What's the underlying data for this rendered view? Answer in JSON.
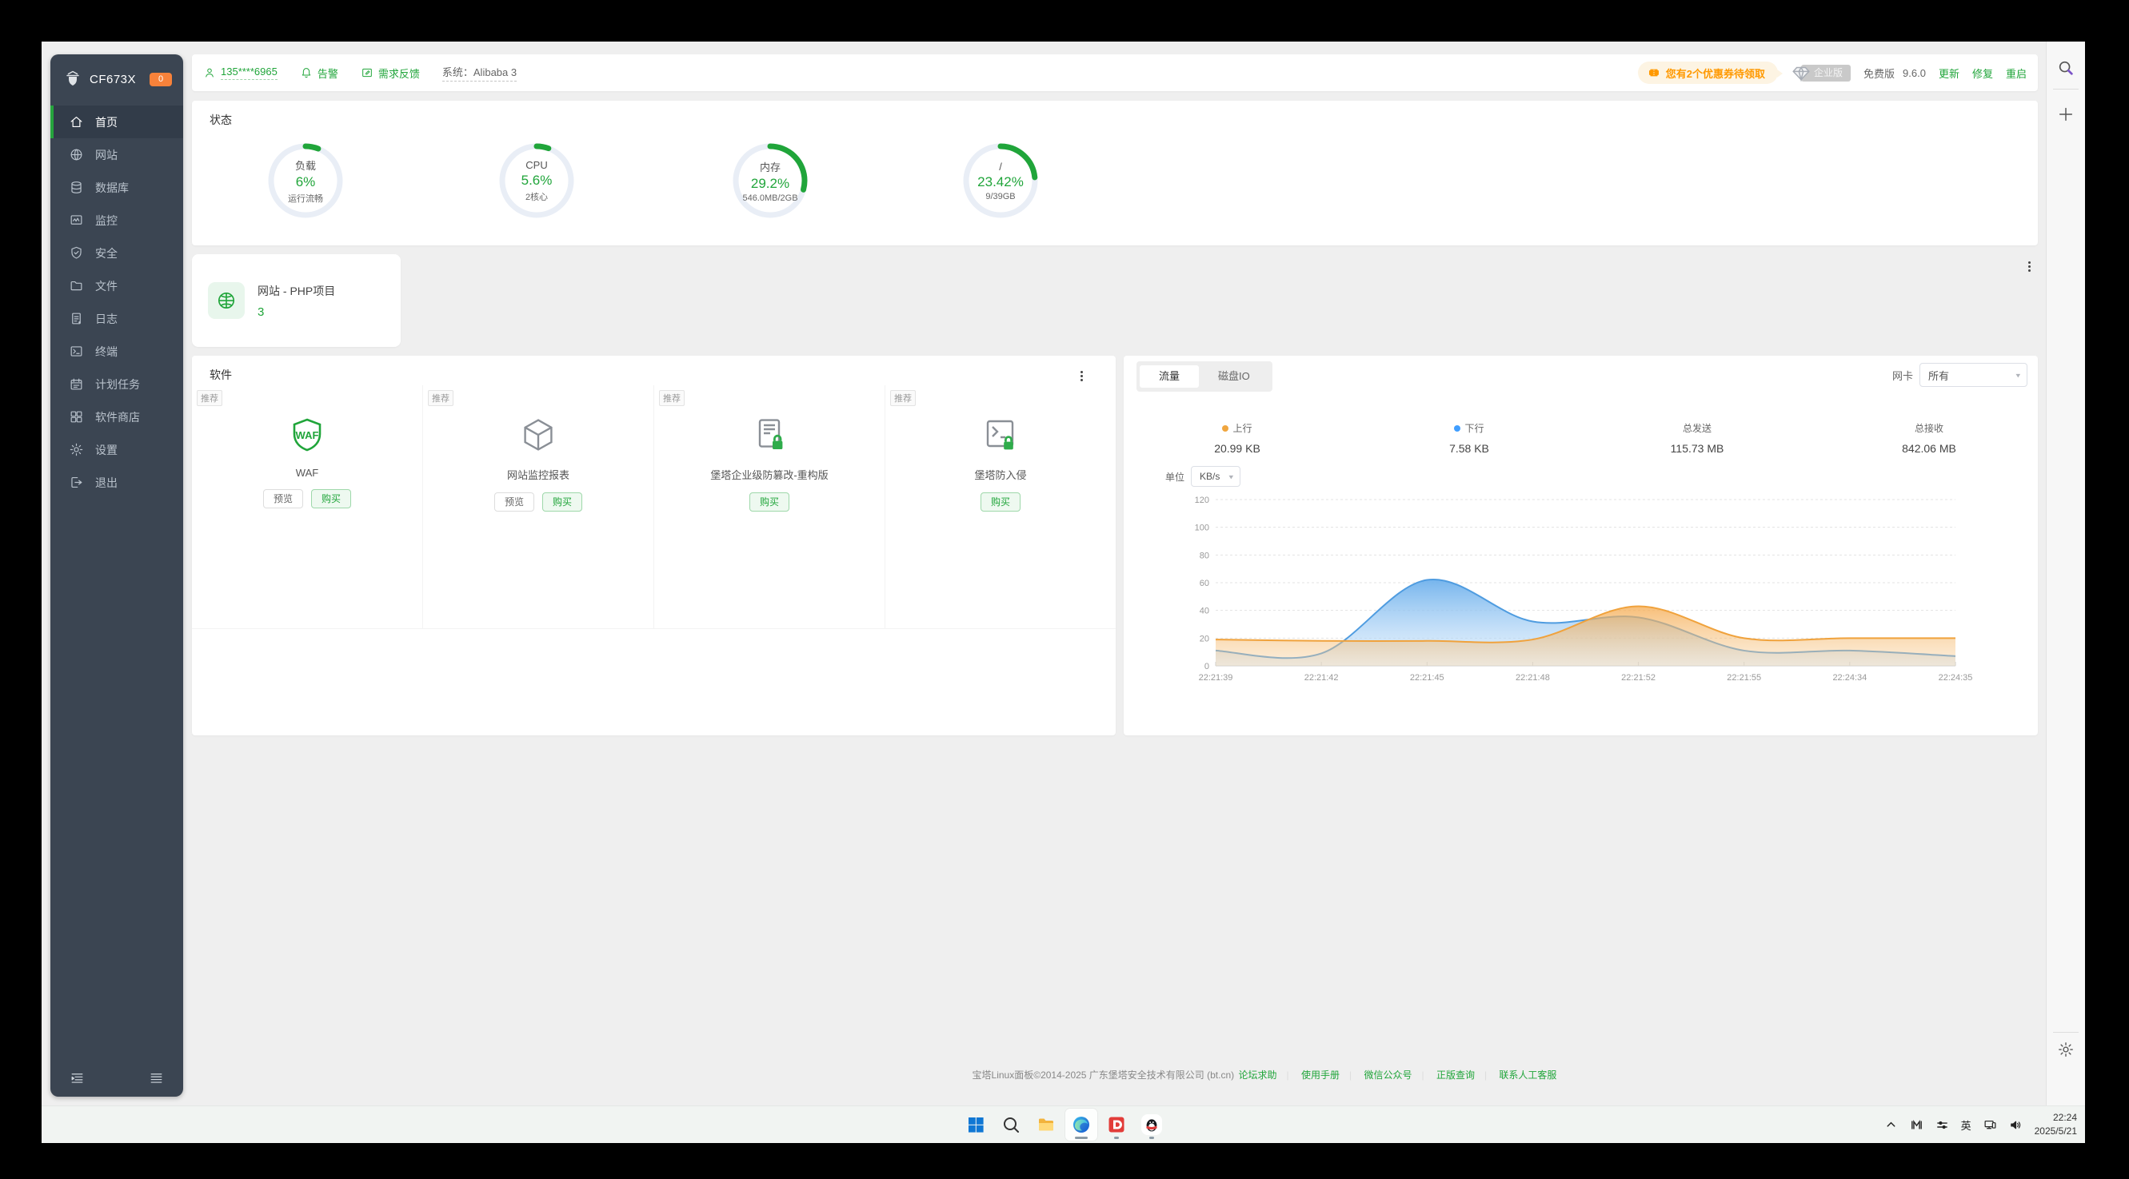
{
  "sidebar": {
    "logo_text": "CF673X",
    "logo_badge": "0",
    "items": [
      {
        "label": "首页",
        "icon": "home-icon",
        "active": true
      },
      {
        "label": "网站",
        "icon": "globe-icon"
      },
      {
        "label": "数据库",
        "icon": "database-icon"
      },
      {
        "label": "监控",
        "icon": "monitor-icon"
      },
      {
        "label": "安全",
        "icon": "shield-icon"
      },
      {
        "label": "文件",
        "icon": "folder-icon"
      },
      {
        "label": "日志",
        "icon": "log-icon"
      },
      {
        "label": "终端",
        "icon": "terminal-icon"
      },
      {
        "label": "计划任务",
        "icon": "calendar-icon"
      },
      {
        "label": "软件商店",
        "icon": "store-icon"
      },
      {
        "label": "设置",
        "icon": "gear-icon"
      },
      {
        "label": "退出",
        "icon": "logout-icon"
      }
    ]
  },
  "topbar": {
    "account": "135****6965",
    "alarm": "告警",
    "feedback": "需求反馈",
    "system": "系统：Alibaba 3",
    "coupon": "您有2个优惠券待领取",
    "enterprise_badge": "企业版",
    "edition": "免费版",
    "version": "9.6.0",
    "update": "更新",
    "repair": "修复",
    "restart": "重启"
  },
  "status": {
    "title": "状态",
    "gauges": [
      {
        "label": "负载",
        "value": "6%",
        "sub": "运行流畅",
        "percent": 6
      },
      {
        "label": "CPU",
        "value": "5.6%",
        "sub": "2核心",
        "percent": 5.6
      },
      {
        "label": "内存",
        "value": "29.2%",
        "sub": "546.0MB/2GB",
        "percent": 29.2
      },
      {
        "label": "/",
        "value": "23.42%",
        "sub": "9/39GB",
        "percent": 23.42
      }
    ]
  },
  "website_card": {
    "title": "网站 - PHP项目",
    "count": "3"
  },
  "software": {
    "title": "软件",
    "recommend_tag": "推荐",
    "items": [
      {
        "name": "WAF",
        "icon": "waf-shield-icon",
        "buttons": [
          "预览",
          "购买"
        ]
      },
      {
        "name": "网站监控报表",
        "icon": "cube-icon",
        "buttons": [
          "预览",
          "购买"
        ]
      },
      {
        "name": "堡塔企业级防篡改-重构版",
        "icon": "server-lock-icon",
        "buttons": [
          "购买"
        ]
      },
      {
        "name": "堡塔防入侵",
        "icon": "terminal-lock-icon",
        "buttons": [
          "购买"
        ]
      }
    ]
  },
  "traffic_panel": {
    "tabs": [
      {
        "label": "流量",
        "active": true
      },
      {
        "label": "磁盘IO",
        "active": false
      }
    ],
    "nic_label": "网卡",
    "nic_value": "所有",
    "stats": [
      {
        "label": "上行",
        "value": "20.99 KB",
        "dot": "#f0a63f"
      },
      {
        "label": "下行",
        "value": "7.58 KB",
        "dot": "#409eff"
      },
      {
        "label": "总发送",
        "value": "115.73 MB"
      },
      {
        "label": "总接收",
        "value": "842.06 MB"
      }
    ],
    "unit_label": "单位",
    "unit_value": "KB/s"
  },
  "chart_data": {
    "type": "area",
    "title": "",
    "xlabel": "",
    "ylabel": "KB/s",
    "x": [
      "22:21:39",
      "22:21:42",
      "22:21:45",
      "22:21:48",
      "22:21:52",
      "22:21:55",
      "22:24:34",
      "22:24:35"
    ],
    "series": [
      {
        "name": "上行",
        "color": "#f0a23c",
        "values": [
          19,
          18,
          18,
          19,
          43,
          20,
          20,
          20
        ]
      },
      {
        "name": "下行",
        "color": "#4f9ce0",
        "values": [
          11,
          9,
          62,
          32,
          35,
          11,
          11,
          7
        ]
      }
    ],
    "ylim": [
      0,
      120
    ],
    "yticks": [
      0,
      20,
      40,
      60,
      80,
      100,
      120
    ],
    "grid": true,
    "legend_position": "none"
  },
  "footer": {
    "copyright": "宝塔Linux面板©2014-2025 广东堡塔安全技术有限公司 (bt.cn)",
    "links": [
      "论坛求助",
      "使用手册",
      "微信公众号",
      "正版查询",
      "联系人工客服"
    ]
  },
  "taskbar": {
    "ime": "英",
    "time": "22:24",
    "date": "2025/5/21"
  },
  "colors": {
    "accent": "#20a53a",
    "up": "#f0a63f",
    "down": "#4f9ce0",
    "sidebar_bg": "#3b4552",
    "badge_orange": "#f8823a"
  }
}
